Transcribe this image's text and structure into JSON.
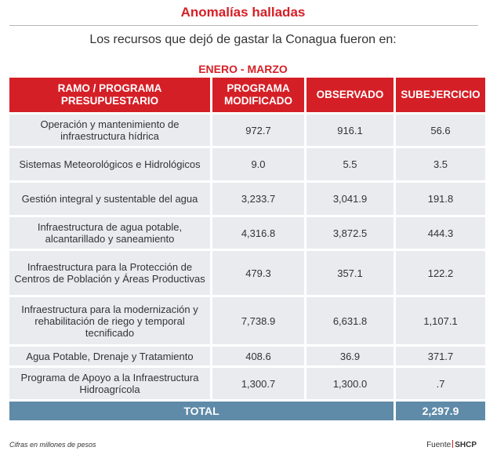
{
  "title": "Anomalías halladas",
  "subtitle": "Los recursos que dejó de gastar la Conagua fueron en:",
  "period": "ENERO - MARZO",
  "table": {
    "headers": {
      "ramo": "RAMO / PROGRAMA PRESUPUESTARIO",
      "modificado": "PROGRAMA MODIFICADO",
      "observado": "OBSERVADO",
      "subejercicio": "SUBEJERCICIO"
    },
    "rows": [
      {
        "programa": "Operación y mantenimiento de infraestructura hídrica",
        "modificado": "972.7",
        "observado": "916.1",
        "subejercicio": "56.6"
      },
      {
        "programa": "Sistemas Meteorológicos e Hidrológicos",
        "modificado": "9.0",
        "observado": "5.5",
        "subejercicio": "3.5"
      },
      {
        "programa": "Gestión integral y sustentable del agua",
        "modificado": "3,233.7",
        "observado": "3,041.9",
        "subejercicio": "191.8"
      },
      {
        "programa": "Infraestructura de agua potable, alcantarillado y saneamiento",
        "modificado": "4,316.8",
        "observado": "3,872.5",
        "subejercicio": "444.3"
      },
      {
        "programa": "Infraestructura para la Protección de Centros de Población y Áreas Productivas",
        "modificado": "479.3",
        "observado": "357.1",
        "subejercicio": "122.2"
      },
      {
        "programa": "Infraestructura para la modernización y rehabilitación de riego y temporal tecnificado",
        "modificado": "7,738.9",
        "observado": "6,631.8",
        "subejercicio": "1,107.1"
      },
      {
        "programa": "Agua Potable, Drenaje y Tratamiento",
        "modificado": "408.6",
        "observado": "36.9",
        "subejercicio": "371.7"
      },
      {
        "programa": "Programa de Apoyo a la Infraestructura Hidroagrícola",
        "modificado": "1,300.7",
        "observado": "1,300.0",
        "subejercicio": ".7"
      }
    ],
    "total": {
      "label": "TOTAL",
      "subejercicio": "2,297.9"
    }
  },
  "footer": {
    "note": "Cifras en millones de pesos",
    "source_label": "Fuente",
    "source": "SHCP"
  },
  "colors": {
    "accent": "#d51f26",
    "row_bg": "#e9ebef",
    "total_bg": "#5f8aa8"
  }
}
